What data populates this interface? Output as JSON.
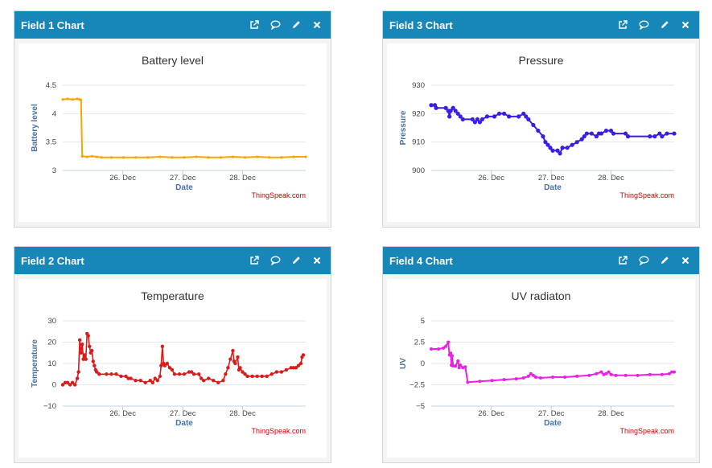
{
  "credit": "ThingSpeak.com",
  "colors": {
    "header": "#1786b9",
    "grid": "#e6e6e6"
  },
  "header_icons": [
    "external-link-icon",
    "comment-icon",
    "pencil-icon",
    "close-icon"
  ],
  "panels": [
    {
      "id": "field1",
      "header_title": "Field 1 Chart",
      "chart_data": {
        "type": "line",
        "title": "Battery level",
        "xlabel": "Date",
        "ylabel": "Battery level",
        "ylim": [
          3,
          4.5
        ],
        "yticks": [
          3,
          3.5,
          4,
          4.5
        ],
        "ytick_labels": [
          "3",
          "3.5",
          "4",
          "4.5"
        ],
        "xlim": [
          0,
          100
        ],
        "xticks": [
          24.7,
          49.4,
          74.0
        ],
        "xtick_labels": [
          "26. Dec",
          "27. Dec",
          "28. Dec"
        ],
        "color": "#f7a500",
        "marker_size": 1.6,
        "line_width": 2,
        "points": [
          [
            0,
            4.25
          ],
          [
            2,
            4.26
          ],
          [
            4,
            4.25
          ],
          [
            6,
            4.26
          ],
          [
            7,
            4.25
          ],
          [
            7.5,
            4.24
          ],
          [
            8,
            3.25
          ],
          [
            10,
            3.24
          ],
          [
            12,
            3.25
          ],
          [
            14,
            3.24
          ],
          [
            16,
            3.23
          ],
          [
            20,
            3.23
          ],
          [
            25,
            3.23
          ],
          [
            30,
            3.23
          ],
          [
            35,
            3.23
          ],
          [
            40,
            3.24
          ],
          [
            45,
            3.23
          ],
          [
            50,
            3.23
          ],
          [
            55,
            3.24
          ],
          [
            60,
            3.23
          ],
          [
            65,
            3.23
          ],
          [
            70,
            3.24
          ],
          [
            75,
            3.23
          ],
          [
            80,
            3.24
          ],
          [
            85,
            3.23
          ],
          [
            90,
            3.23
          ],
          [
            95,
            3.24
          ],
          [
            100,
            3.24
          ]
        ]
      }
    },
    {
      "id": "field3",
      "header_title": "Field 3 Chart",
      "chart_data": {
        "type": "line",
        "title": "Pressure",
        "xlabel": "Date",
        "ylabel": "Pressure",
        "ylim": [
          900,
          930
        ],
        "yticks": [
          900,
          910,
          920,
          930
        ],
        "ytick_labels": [
          "900",
          "910",
          "920",
          "930"
        ],
        "xlim": [
          0,
          100
        ],
        "xticks": [
          24.7,
          49.4,
          74.0
        ],
        "xtick_labels": [
          "26. Dec",
          "27. Dec",
          "28. Dec"
        ],
        "color": "#3a1ee6",
        "marker_size": 2.6,
        "line_width": 2,
        "points": [
          [
            0,
            923
          ],
          [
            1.5,
            923
          ],
          [
            2,
            922
          ],
          [
            6,
            922
          ],
          [
            7,
            921
          ],
          [
            7.5,
            919
          ],
          [
            8,
            921
          ],
          [
            9,
            922
          ],
          [
            10,
            921
          ],
          [
            11,
            920
          ],
          [
            12,
            919
          ],
          [
            13,
            918
          ],
          [
            17,
            918
          ],
          [
            18,
            917
          ],
          [
            19,
            918
          ],
          [
            20,
            917
          ],
          [
            21,
            918
          ],
          [
            23,
            919
          ],
          [
            26,
            919
          ],
          [
            28,
            920
          ],
          [
            30,
            920
          ],
          [
            32,
            919
          ],
          [
            36,
            919
          ],
          [
            38,
            920
          ],
          [
            39,
            919
          ],
          [
            40,
            918
          ],
          [
            42,
            916
          ],
          [
            44,
            914
          ],
          [
            46,
            912
          ],
          [
            47,
            910
          ],
          [
            48,
            909
          ],
          [
            49,
            908
          ],
          [
            50,
            907
          ],
          [
            52,
            907
          ],
          [
            53,
            906
          ],
          [
            54,
            908
          ],
          [
            56,
            908
          ],
          [
            58,
            909
          ],
          [
            60,
            910
          ],
          [
            62,
            911
          ],
          [
            63,
            912
          ],
          [
            64,
            913
          ],
          [
            66,
            913
          ],
          [
            68,
            912
          ],
          [
            69,
            913
          ],
          [
            70,
            913
          ],
          [
            72,
            914
          ],
          [
            74,
            914
          ],
          [
            75,
            913
          ],
          [
            80,
            913
          ],
          [
            81,
            912
          ],
          [
            90,
            912
          ],
          [
            92,
            912
          ],
          [
            94,
            913
          ],
          [
            95,
            912
          ],
          [
            97,
            913
          ],
          [
            100,
            913
          ]
        ]
      }
    },
    {
      "id": "field2",
      "header_title": "Field 2 Chart",
      "chart_data": {
        "type": "line",
        "title": "Temperature",
        "xlabel": "Date",
        "ylabel": "Temperature",
        "ylim": [
          -10,
          30
        ],
        "yticks": [
          -10,
          0,
          10,
          20,
          30
        ],
        "ytick_labels": [
          "−10",
          "0",
          "10",
          "20",
          "30"
        ],
        "xlim": [
          0,
          100
        ],
        "xticks": [
          24.7,
          49.4,
          74.0
        ],
        "xtick_labels": [
          "26. Dec",
          "27. Dec",
          "28. Dec"
        ],
        "color": "#dd1a1a",
        "marker_size": 2.2,
        "line_width": 1.6,
        "points": [
          [
            0,
            0
          ],
          [
            1,
            1
          ],
          [
            2,
            1
          ],
          [
            3,
            0
          ],
          [
            4,
            1
          ],
          [
            5,
            0
          ],
          [
            6,
            3
          ],
          [
            6.5,
            6
          ],
          [
            7,
            21
          ],
          [
            7.5,
            15
          ],
          [
            8,
            19
          ],
          [
            8.5,
            12
          ],
          [
            9,
            14
          ],
          [
            9.5,
            12
          ],
          [
            10,
            24
          ],
          [
            10.5,
            23
          ],
          [
            11,
            18
          ],
          [
            11.5,
            15
          ],
          [
            12,
            16
          ],
          [
            12.5,
            11
          ],
          [
            13,
            9
          ],
          [
            13.5,
            7
          ],
          [
            14,
            6
          ],
          [
            15,
            5
          ],
          [
            18,
            5
          ],
          [
            20,
            5
          ],
          [
            22,
            5
          ],
          [
            24,
            4
          ],
          [
            26,
            4
          ],
          [
            27,
            3
          ],
          [
            28,
            3
          ],
          [
            30,
            2
          ],
          [
            32,
            2
          ],
          [
            34,
            1
          ],
          [
            36,
            2
          ],
          [
            37,
            1
          ],
          [
            38,
            3
          ],
          [
            39,
            2
          ],
          [
            40,
            4
          ],
          [
            40.5,
            9
          ],
          [
            41,
            18
          ],
          [
            41.5,
            10
          ],
          [
            42,
            9
          ],
          [
            43,
            10
          ],
          [
            44,
            8
          ],
          [
            45,
            7
          ],
          [
            46,
            5
          ],
          [
            48,
            5
          ],
          [
            50,
            5
          ],
          [
            52,
            6
          ],
          [
            53,
            6
          ],
          [
            54,
            5
          ],
          [
            56,
            5
          ],
          [
            57,
            3
          ],
          [
            58,
            2
          ],
          [
            60,
            3
          ],
          [
            62,
            2
          ],
          [
            64,
            1
          ],
          [
            66,
            2
          ],
          [
            67,
            5
          ],
          [
            68,
            8
          ],
          [
            69,
            12
          ],
          [
            70,
            16
          ],
          [
            70.5,
            11
          ],
          [
            71,
            10
          ],
          [
            72,
            13
          ],
          [
            72.5,
            7
          ],
          [
            73,
            8
          ],
          [
            74,
            6
          ],
          [
            75,
            5
          ],
          [
            76,
            4
          ],
          [
            78,
            4
          ],
          [
            80,
            4
          ],
          [
            82,
            4
          ],
          [
            84,
            4
          ],
          [
            86,
            5
          ],
          [
            88,
            6
          ],
          [
            90,
            6
          ],
          [
            92,
            7
          ],
          [
            94,
            8
          ],
          [
            95,
            8
          ],
          [
            96,
            8
          ],
          [
            97,
            9
          ],
          [
            98,
            10
          ],
          [
            98.5,
            13
          ],
          [
            99,
            14
          ]
        ]
      }
    },
    {
      "id": "field4",
      "header_title": "Field 4 Chart",
      "chart_data": {
        "type": "line",
        "title": "UV radiaton",
        "xlabel": "Date",
        "ylabel": "UV",
        "ylim": [
          -5,
          5
        ],
        "yticks": [
          -5,
          -2.5,
          0,
          2.5,
          5
        ],
        "ytick_labels": [
          "−5",
          "−2.5",
          "0",
          "2.5",
          "5"
        ],
        "xlim": [
          0,
          100
        ],
        "xticks": [
          24.7,
          49.4,
          74.0
        ],
        "xtick_labels": [
          "26. Dec",
          "27. Dec",
          "28. Dec"
        ],
        "color": "#ee1ee6",
        "marker_size": 2.0,
        "line_width": 2,
        "points": [
          [
            0,
            1.7
          ],
          [
            3,
            1.7
          ],
          [
            5,
            1.8
          ],
          [
            6,
            2.0
          ],
          [
            7,
            2.5
          ],
          [
            7.5,
            1.0
          ],
          [
            8,
            1.2
          ],
          [
            8.3,
            -0.2
          ],
          [
            8.6,
            0.9
          ],
          [
            9,
            -0.3
          ],
          [
            10,
            -0.3
          ],
          [
            11,
            0.3
          ],
          [
            11.5,
            -0.5
          ],
          [
            12,
            -0.2
          ],
          [
            13,
            -0.5
          ],
          [
            14,
            -0.4
          ],
          [
            15,
            -2.2
          ],
          [
            20,
            -2.1
          ],
          [
            25,
            -2.0
          ],
          [
            30,
            -1.9
          ],
          [
            35,
            -1.8
          ],
          [
            38,
            -1.7
          ],
          [
            40,
            -1.5
          ],
          [
            41,
            -1.2
          ],
          [
            42,
            -1.4
          ],
          [
            43,
            -1.6
          ],
          [
            45,
            -1.7
          ],
          [
            50,
            -1.6
          ],
          [
            55,
            -1.6
          ],
          [
            60,
            -1.5
          ],
          [
            65,
            -1.4
          ],
          [
            68,
            -1.2
          ],
          [
            70,
            -1.0
          ],
          [
            71,
            -1.3
          ],
          [
            72,
            -1.2
          ],
          [
            73,
            -1.0
          ],
          [
            74,
            -1.3
          ],
          [
            76,
            -1.4
          ],
          [
            80,
            -1.4
          ],
          [
            85,
            -1.4
          ],
          [
            90,
            -1.3
          ],
          [
            95,
            -1.3
          ],
          [
            98,
            -1.2
          ],
          [
            99,
            -1.0
          ],
          [
            100,
            -1.0
          ]
        ]
      }
    }
  ]
}
